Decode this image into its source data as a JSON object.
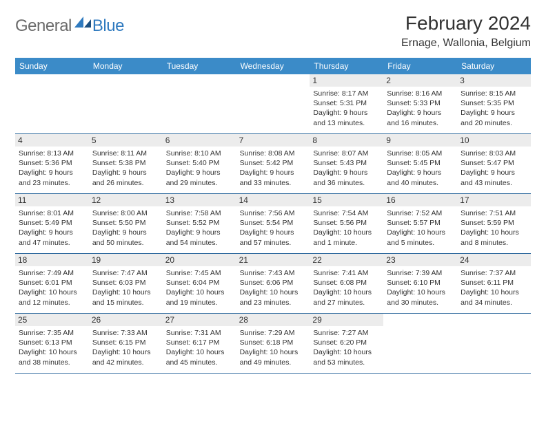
{
  "brand": {
    "general": "General",
    "blue": "Blue"
  },
  "header": {
    "title": "February 2024",
    "location": "Ernage, Wallonia, Belgium"
  },
  "colors": {
    "header_bar": "#3b8bc8",
    "week_divider": "#2f6a9e",
    "daynum_bg": "#ececec",
    "text": "#333333",
    "logo_gray": "#6a6a6a",
    "logo_blue": "#2f7abf"
  },
  "weekdays": [
    "Sunday",
    "Monday",
    "Tuesday",
    "Wednesday",
    "Thursday",
    "Friday",
    "Saturday"
  ],
  "weeks": [
    [
      null,
      null,
      null,
      null,
      {
        "n": "1",
        "sr": "8:17 AM",
        "ss": "5:31 PM",
        "dl": "9 hours and 13 minutes."
      },
      {
        "n": "2",
        "sr": "8:16 AM",
        "ss": "5:33 PM",
        "dl": "9 hours and 16 minutes."
      },
      {
        "n": "3",
        "sr": "8:15 AM",
        "ss": "5:35 PM",
        "dl": "9 hours and 20 minutes."
      }
    ],
    [
      {
        "n": "4",
        "sr": "8:13 AM",
        "ss": "5:36 PM",
        "dl": "9 hours and 23 minutes."
      },
      {
        "n": "5",
        "sr": "8:11 AM",
        "ss": "5:38 PM",
        "dl": "9 hours and 26 minutes."
      },
      {
        "n": "6",
        "sr": "8:10 AM",
        "ss": "5:40 PM",
        "dl": "9 hours and 29 minutes."
      },
      {
        "n": "7",
        "sr": "8:08 AM",
        "ss": "5:42 PM",
        "dl": "9 hours and 33 minutes."
      },
      {
        "n": "8",
        "sr": "8:07 AM",
        "ss": "5:43 PM",
        "dl": "9 hours and 36 minutes."
      },
      {
        "n": "9",
        "sr": "8:05 AM",
        "ss": "5:45 PM",
        "dl": "9 hours and 40 minutes."
      },
      {
        "n": "10",
        "sr": "8:03 AM",
        "ss": "5:47 PM",
        "dl": "9 hours and 43 minutes."
      }
    ],
    [
      {
        "n": "11",
        "sr": "8:01 AM",
        "ss": "5:49 PM",
        "dl": "9 hours and 47 minutes."
      },
      {
        "n": "12",
        "sr": "8:00 AM",
        "ss": "5:50 PM",
        "dl": "9 hours and 50 minutes."
      },
      {
        "n": "13",
        "sr": "7:58 AM",
        "ss": "5:52 PM",
        "dl": "9 hours and 54 minutes."
      },
      {
        "n": "14",
        "sr": "7:56 AM",
        "ss": "5:54 PM",
        "dl": "9 hours and 57 minutes."
      },
      {
        "n": "15",
        "sr": "7:54 AM",
        "ss": "5:56 PM",
        "dl": "10 hours and 1 minute."
      },
      {
        "n": "16",
        "sr": "7:52 AM",
        "ss": "5:57 PM",
        "dl": "10 hours and 5 minutes."
      },
      {
        "n": "17",
        "sr": "7:51 AM",
        "ss": "5:59 PM",
        "dl": "10 hours and 8 minutes."
      }
    ],
    [
      {
        "n": "18",
        "sr": "7:49 AM",
        "ss": "6:01 PM",
        "dl": "10 hours and 12 minutes."
      },
      {
        "n": "19",
        "sr": "7:47 AM",
        "ss": "6:03 PM",
        "dl": "10 hours and 15 minutes."
      },
      {
        "n": "20",
        "sr": "7:45 AM",
        "ss": "6:04 PM",
        "dl": "10 hours and 19 minutes."
      },
      {
        "n": "21",
        "sr": "7:43 AM",
        "ss": "6:06 PM",
        "dl": "10 hours and 23 minutes."
      },
      {
        "n": "22",
        "sr": "7:41 AM",
        "ss": "6:08 PM",
        "dl": "10 hours and 27 minutes."
      },
      {
        "n": "23",
        "sr": "7:39 AM",
        "ss": "6:10 PM",
        "dl": "10 hours and 30 minutes."
      },
      {
        "n": "24",
        "sr": "7:37 AM",
        "ss": "6:11 PM",
        "dl": "10 hours and 34 minutes."
      }
    ],
    [
      {
        "n": "25",
        "sr": "7:35 AM",
        "ss": "6:13 PM",
        "dl": "10 hours and 38 minutes."
      },
      {
        "n": "26",
        "sr": "7:33 AM",
        "ss": "6:15 PM",
        "dl": "10 hours and 42 minutes."
      },
      {
        "n": "27",
        "sr": "7:31 AM",
        "ss": "6:17 PM",
        "dl": "10 hours and 45 minutes."
      },
      {
        "n": "28",
        "sr": "7:29 AM",
        "ss": "6:18 PM",
        "dl": "10 hours and 49 minutes."
      },
      {
        "n": "29",
        "sr": "7:27 AM",
        "ss": "6:20 PM",
        "dl": "10 hours and 53 minutes."
      },
      null,
      null
    ]
  ],
  "labels": {
    "sunrise_prefix": "Sunrise: ",
    "sunset_prefix": "Sunset: ",
    "daylight_prefix": "Daylight: "
  }
}
